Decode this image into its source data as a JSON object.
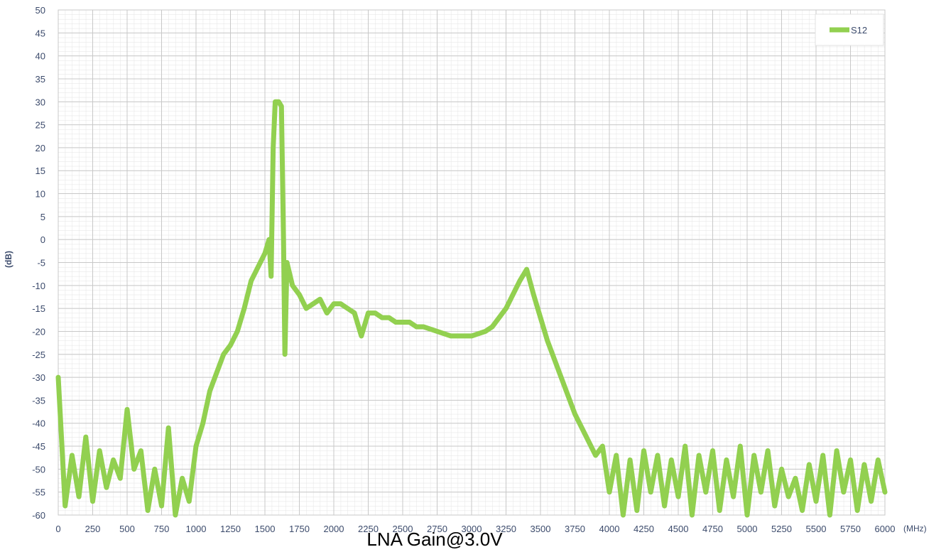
{
  "chart_data": {
    "type": "line",
    "title": "LNA Gain@3.0V",
    "y_label": "(dB)",
    "x_label": "(MHz)",
    "x": [
      0,
      50,
      100,
      150,
      200,
      250,
      300,
      350,
      400,
      450,
      500,
      550,
      600,
      650,
      700,
      750,
      800,
      850,
      900,
      950,
      1000,
      1050,
      1100,
      1150,
      1200,
      1250,
      1300,
      1350,
      1400,
      1450,
      1500,
      1530,
      1545,
      1560,
      1575,
      1600,
      1620,
      1635,
      1645,
      1660,
      1700,
      1750,
      1800,
      1850,
      1900,
      1950,
      2000,
      2050,
      2100,
      2150,
      2200,
      2250,
      2300,
      2350,
      2400,
      2450,
      2500,
      2550,
      2600,
      2650,
      2700,
      2750,
      2800,
      2850,
      2900,
      2950,
      3000,
      3050,
      3100,
      3150,
      3200,
      3250,
      3300,
      3350,
      3400,
      3450,
      3500,
      3550,
      3600,
      3650,
      3700,
      3750,
      3800,
      3850,
      3900,
      3950,
      4000,
      4050,
      4100,
      4150,
      4200,
      4250,
      4300,
      4350,
      4400,
      4450,
      4500,
      4550,
      4600,
      4650,
      4700,
      4750,
      4800,
      4850,
      4900,
      4950,
      5000,
      5050,
      5100,
      5150,
      5200,
      5250,
      5300,
      5350,
      5400,
      5450,
      5500,
      5550,
      5600,
      5650,
      5700,
      5750,
      5800,
      5850,
      5900,
      5950,
      6000
    ],
    "series": [
      {
        "name": "S12",
        "color": "#92d050",
        "values": [
          -30,
          -58,
          -47,
          -56,
          -43,
          -57,
          -46,
          -54,
          -48,
          -52,
          -37,
          -50,
          -46,
          -59,
          -50,
          -58,
          -41,
          -60,
          -52,
          -57,
          -45,
          -40,
          -33,
          -29,
          -25,
          -23,
          -20,
          -15,
          -9,
          -6,
          -3,
          0,
          -8,
          20,
          30,
          30,
          29,
          0,
          -25,
          -5,
          -10,
          -12,
          -15,
          -14,
          -13,
          -16,
          -14,
          -14,
          -15,
          -16,
          -21,
          -16,
          -16,
          -17,
          -17,
          -18,
          -18,
          -18,
          -19,
          -19,
          -19.5,
          -20,
          -20.5,
          -21,
          -21,
          -21,
          -21,
          -20.5,
          -20,
          -19,
          -17,
          -15,
          -12,
          -9,
          -6.5,
          -12,
          -17,
          -22,
          -26,
          -30,
          -34,
          -38,
          -41,
          -44,
          -47,
          -45,
          -55,
          -47,
          -60,
          -48,
          -59,
          -46,
          -55,
          -47,
          -58,
          -48,
          -56,
          -45,
          -60,
          -47,
          -55,
          -46,
          -59,
          -48,
          -56,
          -45,
          -60,
          -47,
          -55,
          -46,
          -58,
          -50,
          -56,
          -52,
          -59,
          -49,
          -57,
          -47,
          -60,
          -46,
          -55,
          -48,
          -59,
          -49,
          -57,
          -48,
          -55
        ]
      }
    ],
    "xlim": [
      0,
      6000
    ],
    "ylim": [
      -60,
      50
    ],
    "xticks": [
      0,
      250,
      500,
      750,
      1000,
      1250,
      1500,
      1750,
      2000,
      2250,
      2500,
      2750,
      3000,
      3250,
      3500,
      3750,
      4000,
      4250,
      4500,
      4750,
      5000,
      5250,
      5500,
      5750,
      6000
    ],
    "yticks": [
      50,
      45,
      40,
      35,
      30,
      25,
      20,
      15,
      10,
      5,
      0,
      -5,
      -10,
      -15,
      -20,
      -25,
      -30,
      -35,
      -40,
      -45,
      -50,
      -55,
      -60
    ],
    "grid": true,
    "legend": "upper right"
  }
}
